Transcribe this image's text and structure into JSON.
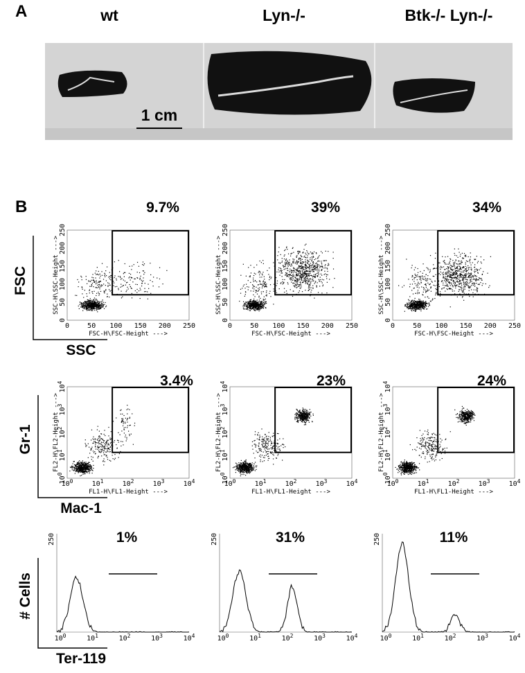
{
  "panel_a": {
    "label": "A",
    "columns": [
      "wt",
      "Lyn-/-",
      "Btk-/- Lyn-/-"
    ],
    "scale_bar": "1 cm"
  },
  "panel_b": {
    "label": "B",
    "rows": [
      {
        "y_label": "FSC",
        "x_label": "SSC",
        "plot_x_title": "FSC-H\\FSC-Height --->",
        "plot_y_title": "SSC-H\\SSC-Height --->",
        "ticks": [
          0,
          50,
          100,
          150,
          200,
          250
        ],
        "percents": [
          "9.7%",
          "39%",
          "34%"
        ]
      },
      {
        "y_label": "Gr-1",
        "x_label": "Mac-1",
        "plot_x_title": "FL1-H\\FL1-Height --->",
        "plot_y_title": "FL2-H\\FL2-Height --->",
        "ticks": [
          {
            "base": "10",
            "exponent": "0"
          },
          {
            "base": "10",
            "exponent": "1"
          },
          {
            "base": "10",
            "exponent": "2"
          },
          {
            "base": "10",
            "exponent": "3"
          },
          {
            "base": "10",
            "exponent": "4"
          }
        ],
        "percents": [
          "3.4%",
          "23%",
          "24%"
        ]
      },
      {
        "y_label": "# Cells",
        "x_label": "Ter-119",
        "y_tick": 250,
        "ticks": [
          {
            "base": "10",
            "exponent": "0"
          },
          {
            "base": "10",
            "exponent": "1"
          },
          {
            "base": "10",
            "exponent": "2"
          },
          {
            "base": "10",
            "exponent": "3"
          },
          {
            "base": "10",
            "exponent": "4"
          }
        ],
        "percents": [
          "1%",
          "31%",
          "11%"
        ]
      }
    ]
  }
}
